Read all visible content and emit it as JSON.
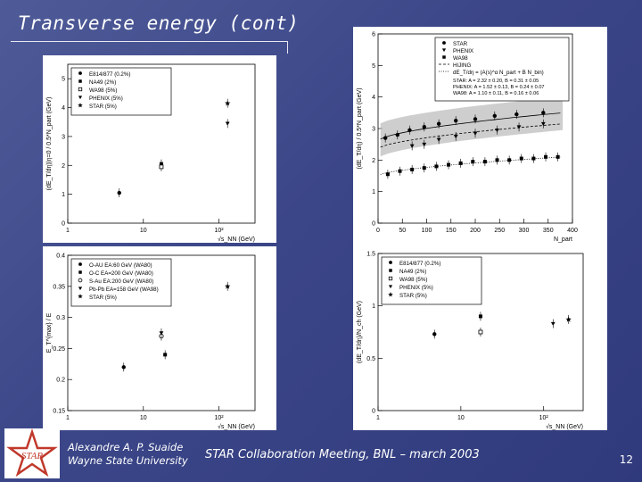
{
  "slide": {
    "title": "Transverse energy (cont)",
    "author_name": "Alexandre A. P. Suaide",
    "author_affiliation": "Wayne State University",
    "meeting": "STAR Collaboration Meeting, BNL – march 2003",
    "page_number": "12",
    "logo_text": "STAR"
  },
  "chart_data": [
    {
      "type": "scatter",
      "panel": "top-left",
      "ylabel": "(dE_T/dη)|η=0 / 0.5*N_part (GeV)",
      "xlabel": "√s_NN (GeV)",
      "x_ticks": [
        "1",
        "10",
        "10²"
      ],
      "y_ticks": [
        "0",
        "1",
        "2",
        "3",
        "4",
        "5"
      ],
      "log_x": true,
      "xlim": [
        1,
        300
      ],
      "ylim": [
        0,
        5.5
      ],
      "legend_position": "top-left",
      "series": [
        {
          "name": "E814/877 (0.2%)",
          "marker": "circle",
          "points": [
            [
              4.8,
              1.05
            ]
          ]
        },
        {
          "name": "NA49 (2%)",
          "marker": "square",
          "points": [
            [
              17.3,
              2.05
            ]
          ]
        },
        {
          "name": "WA98 (5%)",
          "marker": "open-square",
          "points": [
            [
              17.3,
              1.95
            ]
          ]
        },
        {
          "name": "PHENIX (5%)",
          "marker": "triangle-down",
          "points": [
            [
              130,
              3.45
            ]
          ]
        },
        {
          "name": "STAR (5%)",
          "marker": "star",
          "points": [
            [
              130,
              4.15
            ]
          ]
        }
      ]
    },
    {
      "type": "scatter",
      "panel": "top-right",
      "ylabel": "(dE_T/dη) / 0.5*N_part (GeV)",
      "xlabel": "N_part",
      "x_ticks": [
        "0",
        "50",
        "100",
        "150",
        "200",
        "250",
        "300",
        "350",
        "400"
      ],
      "y_ticks": [
        "0",
        "1",
        "2",
        "3",
        "4",
        "5",
        "6"
      ],
      "xlim": [
        0,
        400
      ],
      "ylim": [
        0,
        6
      ],
      "legend_position": "top-right",
      "legend": [
        {
          "name": "STAR",
          "marker": "circle"
        },
        {
          "name": "PHENIX",
          "marker": "triangle-down"
        },
        {
          "name": "WA98",
          "marker": "square"
        },
        {
          "name": "HIJING",
          "marker": "dashed-line"
        },
        {
          "name": "dE_T/dη = (A(s)^α N_part + B N_bin)",
          "marker": "dotted-line"
        }
      ],
      "fit_text": [
        "STAR: A = 2.32 ± 0.20, B = 0.31 ± 0.05",
        "PHENIX: A = 1.52 ± 0.13, B = 0.24 ± 0.07",
        "WA98: A = 1.10 ± 0.11, B = 0.16 ± 0.06"
      ],
      "series": [
        {
          "name": "STAR",
          "marker": "circle",
          "x": [
            15,
            40,
            65,
            95,
            125,
            160,
            200,
            240,
            285,
            340
          ],
          "y": [
            2.7,
            2.8,
            2.95,
            3.05,
            3.15,
            3.25,
            3.3,
            3.4,
            3.45,
            3.5
          ]
        },
        {
          "name": "PHENIX",
          "marker": "triangle-down",
          "x": [
            70,
            95,
            125,
            160,
            200,
            245,
            290,
            340
          ],
          "y": [
            2.45,
            2.5,
            2.65,
            2.75,
            2.85,
            2.95,
            3.05,
            3.15
          ]
        },
        {
          "name": "WA98",
          "marker": "square",
          "x": [
            20,
            45,
            70,
            95,
            120,
            145,
            170,
            195,
            220,
            245,
            270,
            295,
            320,
            345,
            370
          ],
          "y": [
            1.55,
            1.65,
            1.7,
            1.75,
            1.8,
            1.85,
            1.9,
            1.95,
            1.95,
            2.0,
            2.0,
            2.05,
            2.05,
            2.1,
            2.1
          ]
        }
      ]
    },
    {
      "type": "scatter",
      "panel": "bottom-left",
      "ylabel": "E_T^{max} / E",
      "xlabel": "√s_NN (GeV)",
      "x_ticks": [
        "1",
        "10",
        "10²"
      ],
      "y_ticks": [
        "0.15",
        "0.2",
        "0.25",
        "0.3",
        "0.35",
        "0.4"
      ],
      "log_x": true,
      "xlim": [
        1,
        300
      ],
      "ylim": [
        0.15,
        0.4
      ],
      "legend_position": "top-left",
      "series": [
        {
          "name": "O-AU EA:60 GeV (WA80)",
          "marker": "circle",
          "points": [
            [
              5.5,
              0.22
            ]
          ]
        },
        {
          "name": "O-C EA=200 GeV (WA80)",
          "marker": "square",
          "points": [
            [
              19.4,
              0.24
            ]
          ]
        },
        {
          "name": "S-Au EA:200 GeV (WA80)",
          "marker": "open-circle",
          "points": [
            [
              17.3,
              0.27
            ]
          ]
        },
        {
          "name": "Pb-Pb EA=158 GeV (WA98)",
          "marker": "triangle-down",
          "points": [
            [
              17.3,
              0.275
            ]
          ]
        },
        {
          "name": "STAR (5%)",
          "marker": "star",
          "points": [
            [
              130,
              0.35
            ]
          ]
        }
      ]
    },
    {
      "type": "scatter",
      "panel": "bottom-right",
      "ylabel": "(dE_T/dη)/N_ch (GeV)",
      "xlabel": "√s_NN (GeV)",
      "x_ticks": [
        "1",
        "10",
        "10²"
      ],
      "y_ticks": [
        "0",
        "0.5",
        "1",
        "1.5"
      ],
      "log_x": true,
      "xlim": [
        1,
        300
      ],
      "ylim": [
        0,
        1.5
      ],
      "legend_position": "top-left",
      "series": [
        {
          "name": "E814/877 (0.2%)",
          "marker": "circle",
          "points": [
            [
              4.8,
              0.73
            ]
          ]
        },
        {
          "name": "NA49 (2%)",
          "marker": "square",
          "points": [
            [
              17.3,
              0.9
            ]
          ]
        },
        {
          "name": "WA98 (5%)",
          "marker": "open-square",
          "points": [
            [
              17.3,
              0.75
            ]
          ]
        },
        {
          "name": "PHENIX (5%)",
          "marker": "triangle-down",
          "points": [
            [
              130,
              0.83
            ]
          ]
        },
        {
          "name": "STAR (5%)",
          "marker": "star",
          "points": [
            [
              200,
              0.87
            ]
          ]
        }
      ]
    }
  ]
}
